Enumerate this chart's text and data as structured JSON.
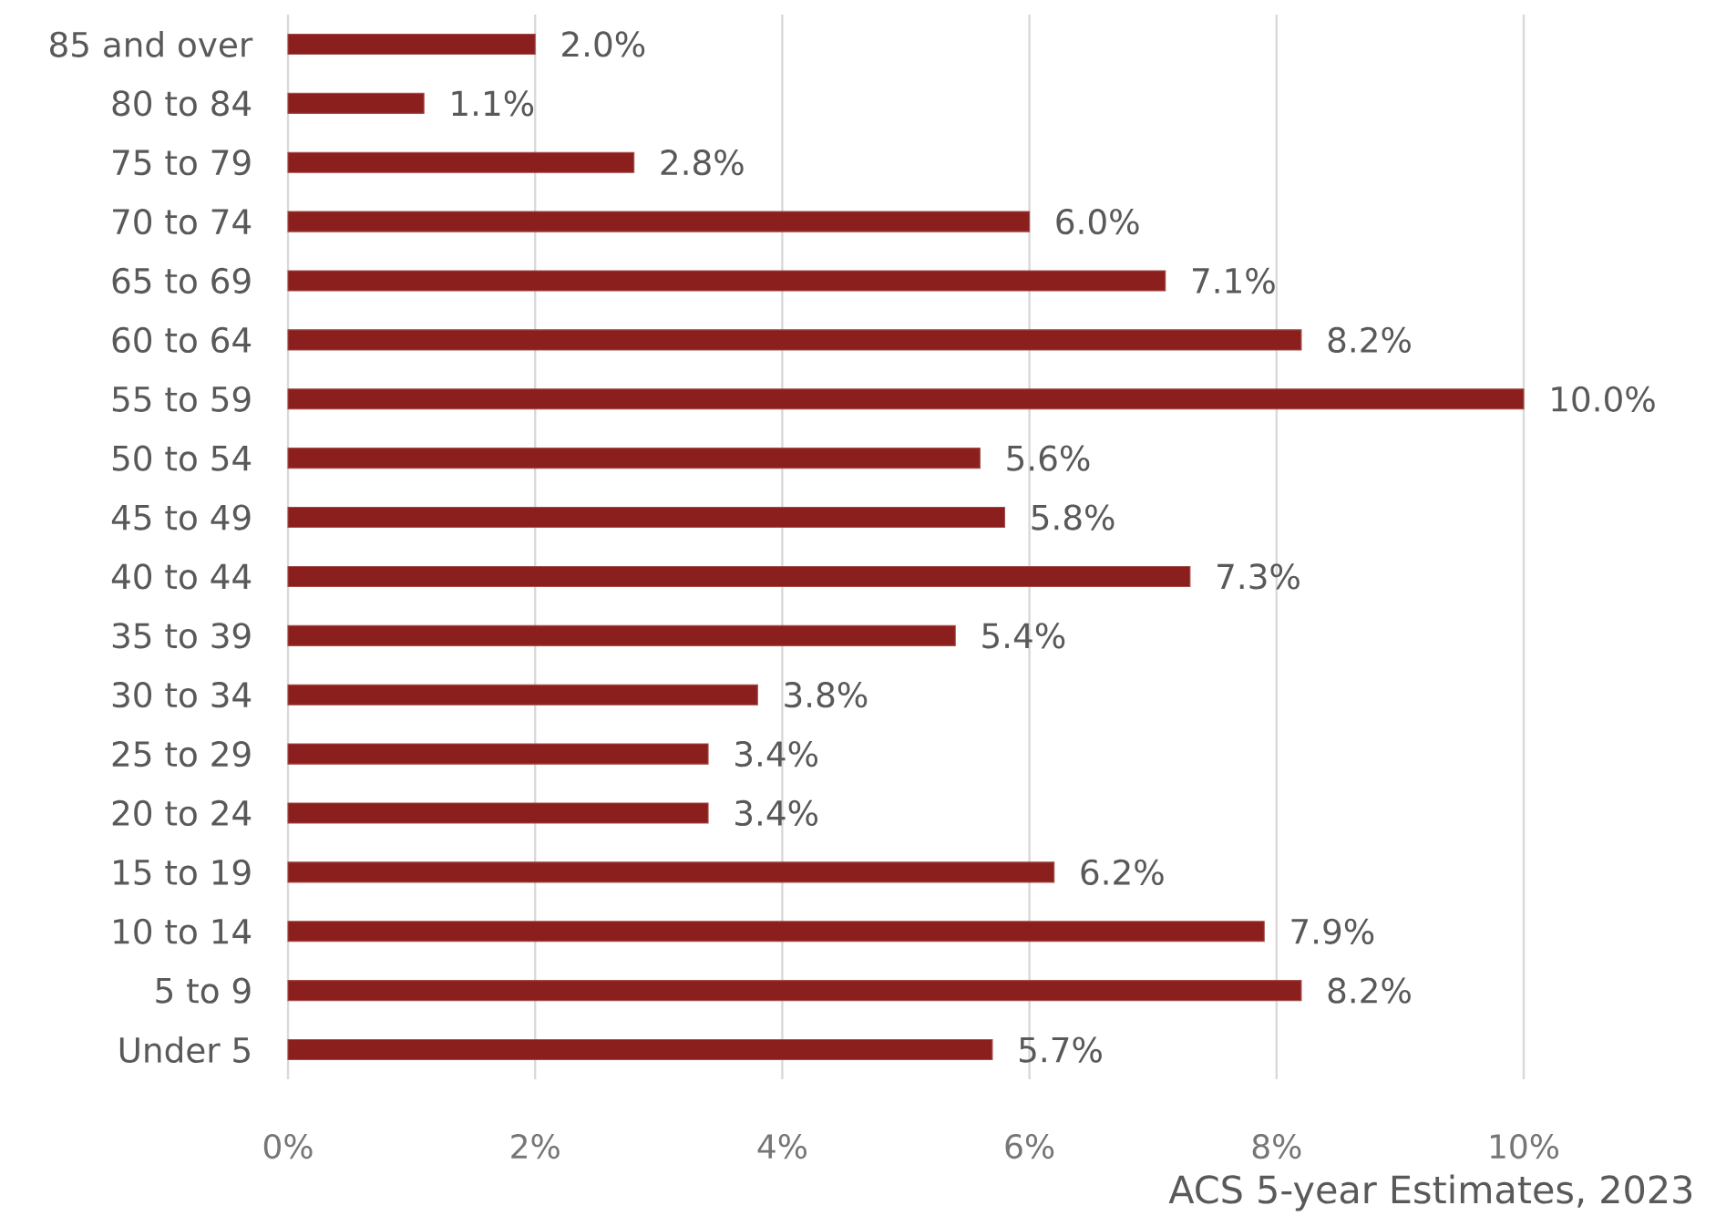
{
  "chart_data": {
    "type": "bar",
    "orientation": "horizontal",
    "categories": [
      "85 and over",
      "80 to 84",
      "75 to 79",
      "70 to 74",
      "65 to 69",
      "60 to 64",
      "55 to 59",
      "50 to 54",
      "45 to 49",
      "40 to 44",
      "35 to 39",
      "30 to 34",
      "25 to 29",
      "20 to 24",
      "15 to 19",
      "10 to 14",
      "5 to 9",
      "Under 5"
    ],
    "values": [
      2.0,
      1.1,
      2.8,
      6.0,
      7.1,
      8.2,
      10.0,
      5.6,
      5.8,
      7.3,
      5.4,
      3.8,
      3.4,
      3.4,
      6.2,
      7.9,
      8.2,
      5.7
    ],
    "value_labels": [
      "2.0%",
      "1.1%",
      "2.8%",
      "6.0%",
      "7.1%",
      "8.2%",
      "10.0%",
      "5.6%",
      "5.8%",
      "7.3%",
      "5.4%",
      "3.8%",
      "3.4%",
      "3.4%",
      "6.2%",
      "7.9%",
      "8.2%",
      "5.7%"
    ],
    "color": "#8b1f1d",
    "xlim": [
      0,
      10
    ],
    "xticks": [
      {
        "value": 0,
        "label": "0%"
      },
      {
        "value": 2,
        "label": "2%"
      },
      {
        "value": 4,
        "label": "4%"
      },
      {
        "value": 6,
        "label": "6%"
      },
      {
        "value": 8,
        "label": "8%"
      },
      {
        "value": 10,
        "label": "10%"
      }
    ],
    "grid": "x",
    "annotations": [
      "ACS 5-year Estimates, 2023"
    ]
  }
}
